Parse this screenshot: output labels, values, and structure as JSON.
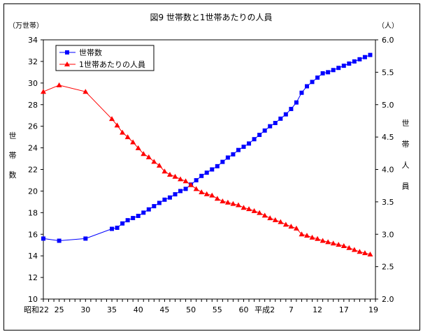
{
  "chart_data": {
    "type": "line",
    "title": "図9  世帯数と1世帯あたりの人員",
    "y_left_unit": "（万世帯）",
    "y_right_unit": "（人）",
    "y_left_label": [
      "世",
      "帯",
      "数"
    ],
    "y_right_label": [
      "世",
      "帯",
      "人",
      "員"
    ],
    "y_left_ticks": [
      "34",
      "32",
      "30",
      "28",
      "26",
      "24",
      "22",
      "20",
      "18",
      "16",
      "14",
      "12",
      "10"
    ],
    "y_right_ticks": [
      "6.0",
      "5.5",
      "5.0",
      "4.5",
      "4.0",
      "3.5",
      "3.0",
      "2.5",
      "2.0"
    ],
    "x_tick_labels": [
      "昭和22",
      "25",
      "30",
      "35",
      "40",
      "45",
      "50",
      "55",
      "60",
      "平成2",
      "7",
      "12",
      "17",
      "19"
    ],
    "ylim_left": [
      10,
      34
    ],
    "ylim_right": [
      2.0,
      6.0
    ],
    "legend_placement": "top-left",
    "series": [
      {
        "name": "世帯数",
        "axis": "left",
        "color": "#0000FF",
        "marker": "square",
        "points": [
          [
            22,
            15.6
          ],
          [
            25,
            15.4
          ],
          [
            30,
            15.6
          ],
          [
            35,
            16.5
          ],
          [
            36,
            16.6
          ],
          [
            37,
            17.0
          ],
          [
            38,
            17.3
          ],
          [
            39,
            17.5
          ],
          [
            40,
            17.7
          ],
          [
            41,
            18.0
          ],
          [
            42,
            18.3
          ],
          [
            43,
            18.6
          ],
          [
            44,
            18.9
          ],
          [
            45,
            19.2
          ],
          [
            46,
            19.4
          ],
          [
            47,
            19.7
          ],
          [
            48,
            20.0
          ],
          [
            49,
            20.2
          ],
          [
            50,
            20.6
          ],
          [
            51,
            21.0
          ],
          [
            52,
            21.4
          ],
          [
            53,
            21.7
          ],
          [
            54,
            22.0
          ],
          [
            55,
            22.3
          ],
          [
            56,
            22.7
          ],
          [
            57,
            23.1
          ],
          [
            58,
            23.4
          ],
          [
            59,
            23.8
          ],
          [
            60,
            24.1
          ],
          [
            61,
            24.4
          ],
          [
            62,
            24.8
          ],
          [
            63,
            25.2
          ],
          [
            64,
            25.6
          ],
          [
            65,
            26.0
          ],
          [
            66,
            26.3
          ],
          [
            67,
            26.7
          ],
          [
            68,
            27.1
          ],
          [
            69,
            27.6
          ],
          [
            70,
            28.2
          ],
          [
            71,
            29.1
          ],
          [
            72,
            29.7
          ],
          [
            73,
            30.1
          ],
          [
            74,
            30.5
          ],
          [
            75,
            30.9
          ],
          [
            76,
            31.0
          ],
          [
            77,
            31.2
          ],
          [
            78,
            31.4
          ],
          [
            79,
            31.6
          ],
          [
            80,
            31.8
          ],
          [
            81,
            32.0
          ],
          [
            82,
            32.2
          ],
          [
            83,
            32.4
          ],
          [
            84,
            32.6
          ]
        ]
      },
      {
        "name": "1世帯あたりの人員",
        "axis": "right",
        "color": "#FF0000",
        "marker": "triangle",
        "points": [
          [
            22,
            5.2
          ],
          [
            25,
            5.3
          ],
          [
            30,
            5.2
          ],
          [
            35,
            4.78
          ],
          [
            36,
            4.68
          ],
          [
            37,
            4.57
          ],
          [
            38,
            4.5
          ],
          [
            39,
            4.42
          ],
          [
            40,
            4.33
          ],
          [
            41,
            4.24
          ],
          [
            42,
            4.19
          ],
          [
            43,
            4.12
          ],
          [
            44,
            4.06
          ],
          [
            45,
            3.97
          ],
          [
            46,
            3.92
          ],
          [
            47,
            3.89
          ],
          [
            48,
            3.85
          ],
          [
            49,
            3.82
          ],
          [
            50,
            3.76
          ],
          [
            51,
            3.7
          ],
          [
            52,
            3.65
          ],
          [
            53,
            3.62
          ],
          [
            54,
            3.6
          ],
          [
            55,
            3.55
          ],
          [
            56,
            3.51
          ],
          [
            57,
            3.49
          ],
          [
            58,
            3.47
          ],
          [
            59,
            3.45
          ],
          [
            60,
            3.41
          ],
          [
            61,
            3.39
          ],
          [
            62,
            3.36
          ],
          [
            63,
            3.33
          ],
          [
            64,
            3.29
          ],
          [
            65,
            3.25
          ],
          [
            66,
            3.22
          ],
          [
            67,
            3.19
          ],
          [
            68,
            3.15
          ],
          [
            69,
            3.12
          ],
          [
            70,
            3.09
          ],
          [
            71,
            3.0
          ],
          [
            72,
            2.98
          ],
          [
            73,
            2.95
          ],
          [
            74,
            2.93
          ],
          [
            75,
            2.9
          ],
          [
            76,
            2.88
          ],
          [
            77,
            2.86
          ],
          [
            78,
            2.84
          ],
          [
            79,
            2.82
          ],
          [
            80,
            2.79
          ],
          [
            81,
            2.76
          ],
          [
            82,
            2.73
          ],
          [
            83,
            2.71
          ],
          [
            84,
            2.69
          ]
        ]
      }
    ]
  }
}
